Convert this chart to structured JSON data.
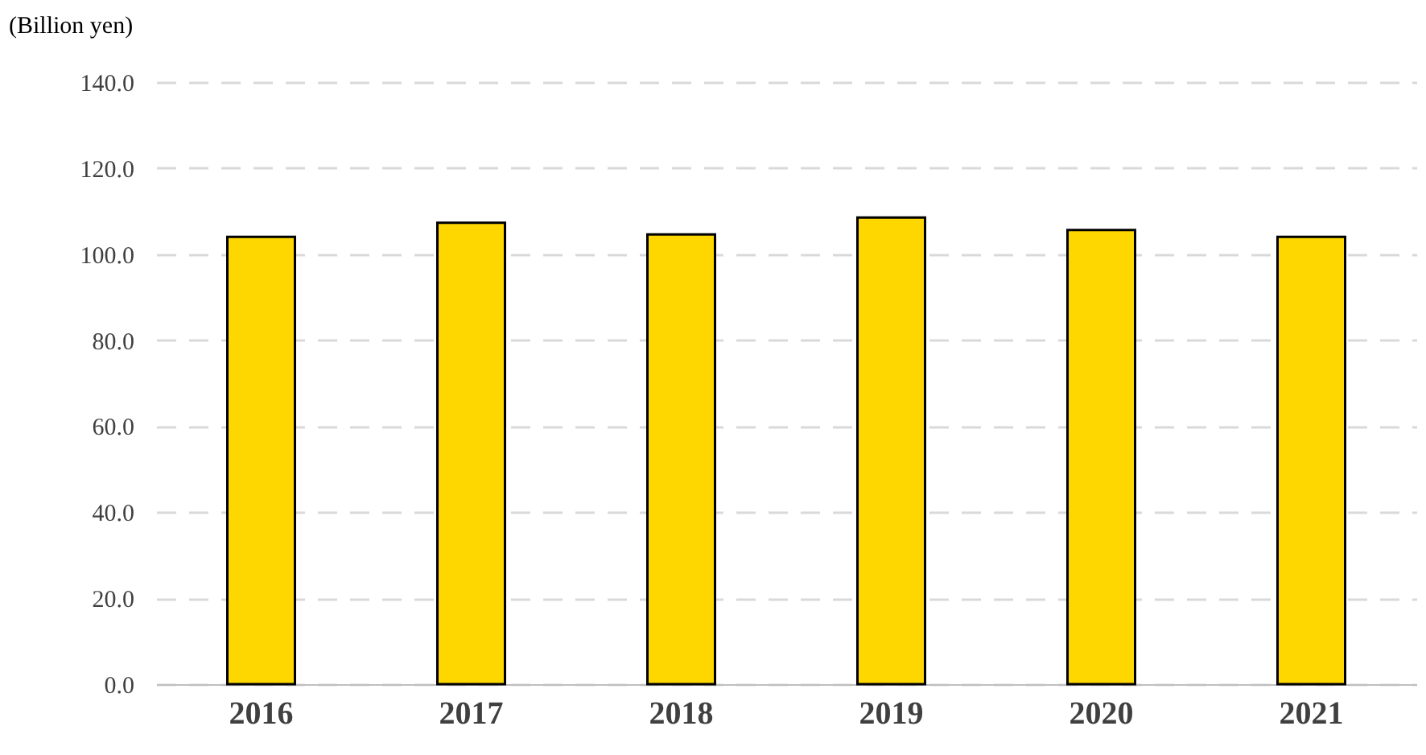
{
  "chart_data": {
    "type": "bar",
    "ylabel": "(Billion yen)",
    "categories": [
      "2016",
      "2017",
      "2018",
      "2019",
      "2020",
      "2021"
    ],
    "values": [
      104.0,
      107.3,
      104.6,
      108.5,
      105.6,
      104.0
    ],
    "color": "#ffd700",
    "ylim": [
      0,
      140
    ],
    "yticks": [
      {
        "value": 0,
        "label": "0.0"
      },
      {
        "value": 20,
        "label": "20.0"
      },
      {
        "value": 40,
        "label": "40.0"
      },
      {
        "value": 60,
        "label": "60.0"
      },
      {
        "value": 80,
        "label": "80.0"
      },
      {
        "value": 100,
        "label": "100.0"
      },
      {
        "value": 120,
        "label": "120.0"
      },
      {
        "value": 140,
        "label": "140.0"
      }
    ],
    "grid": "y"
  }
}
